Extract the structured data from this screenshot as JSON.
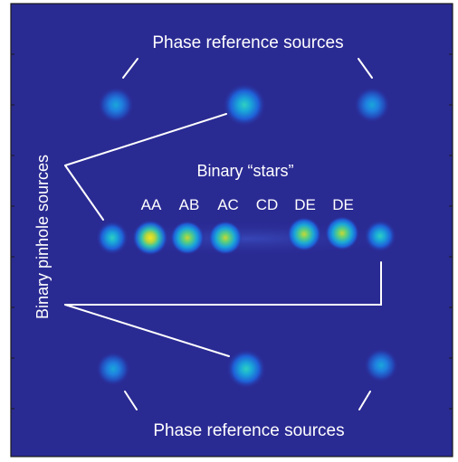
{
  "background_color": "#2a2a93",
  "frame_color": "#1a1a1a",
  "labels": {
    "phase_top": "Phase reference sources",
    "phase_bottom": "Phase reference sources",
    "binary_stars": "Binary “stars”",
    "binary_pinhole": "Binary pinhole sources"
  },
  "star_labels": [
    "AA",
    "AB",
    "AC",
    "CD",
    "DE",
    "DE"
  ],
  "source_groups": {
    "phase_reference_top": 3,
    "binary_row": 8,
    "phase_reference_bottom": 3
  },
  "colormap": [
    "#2a2a93",
    "#1f5fd8",
    "#1aa6d9",
    "#3fc99a",
    "#c8d636",
    "#f7e521"
  ]
}
